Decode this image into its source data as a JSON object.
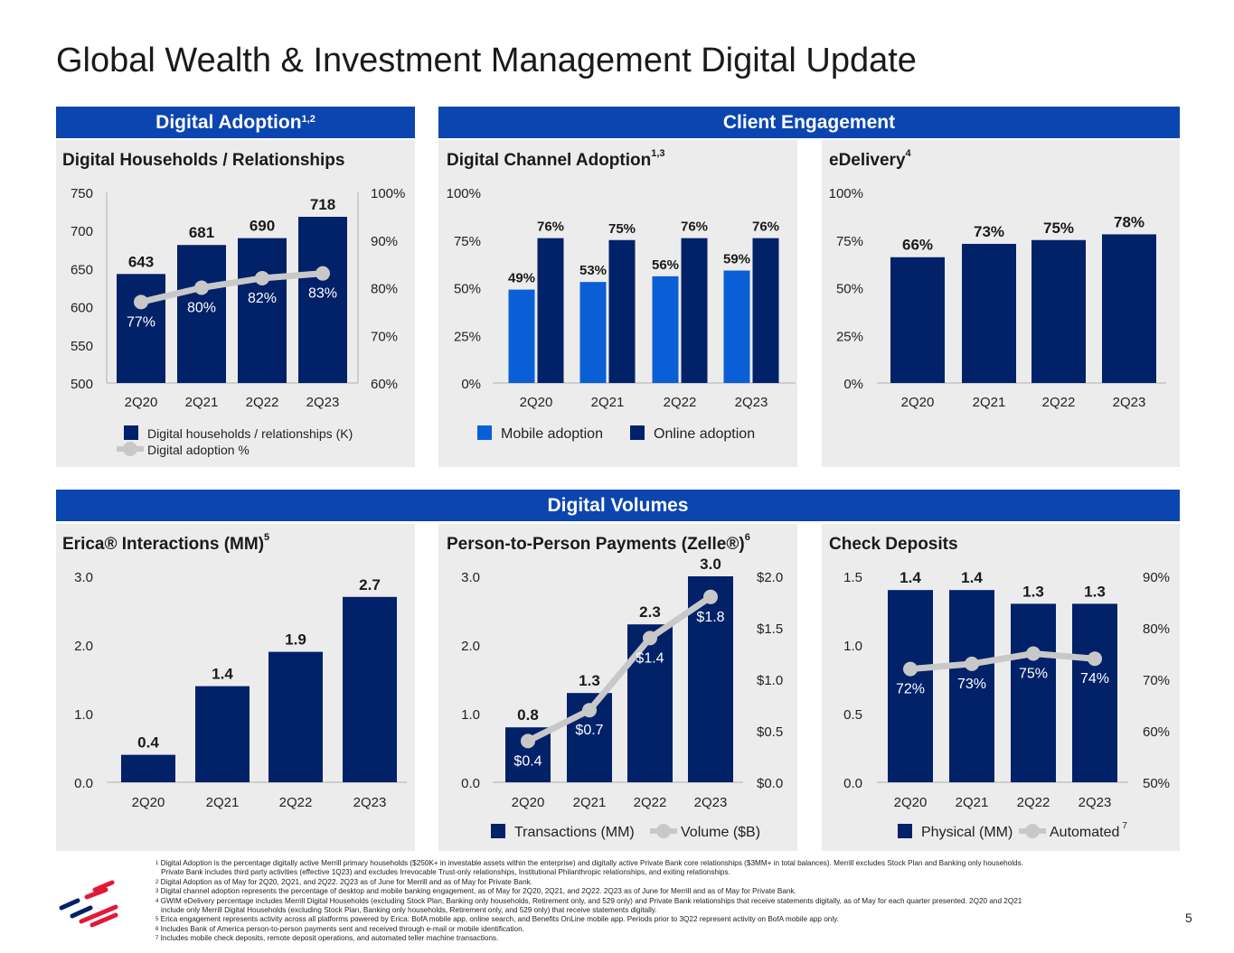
{
  "title": "Global Wealth & Investment Management Digital Update",
  "sections": {
    "digital_adoption": {
      "label": "Digital Adoption",
      "sup": "1,2"
    },
    "client_engagement": {
      "label": "Client Engagement"
    },
    "digital_volumes": {
      "label": "Digital Volumes"
    }
  },
  "colors": {
    "header": "#0b45b0",
    "navy": "#012169",
    "mobile_blue": "#0a5fd6",
    "line_gray": "#c8c8c8",
    "panel_bg": "#ececec",
    "logo_red": "#e31837"
  },
  "chart_data": [
    {
      "type": "bar+line",
      "title": "Digital Households / Relationships",
      "title_sup": "",
      "categories": [
        "2Q20",
        "2Q21",
        "2Q22",
        "2Q23"
      ],
      "ylim": [
        500,
        750
      ],
      "yticks": [
        500,
        550,
        600,
        650,
        700,
        750
      ],
      "ytick_labels": [
        "500",
        "550",
        "600",
        "650",
        "700",
        "750"
      ],
      "y2lim": [
        60,
        100
      ],
      "y2ticks": [
        60,
        70,
        80,
        90,
        100
      ],
      "y2tick_labels": [
        "60%",
        "70%",
        "80%",
        "90%",
        "100%"
      ],
      "legend": "bottom",
      "series": [
        {
          "name": "Digital households / relationships (K)",
          "type": "bar",
          "axis": "left",
          "values": [
            643,
            681,
            690,
            718
          ],
          "labels": [
            "643",
            "681",
            "690",
            "718"
          ]
        },
        {
          "name": "Digital adoption %",
          "type": "line",
          "axis": "right",
          "values": [
            77,
            80,
            82,
            83
          ],
          "labels": [
            "77%",
            "80%",
            "82%",
            "83%"
          ]
        }
      ]
    },
    {
      "type": "bar",
      "title": "Digital Channel Adoption",
      "title_sup": "1,3",
      "categories": [
        "2Q20",
        "2Q21",
        "2Q22",
        "2Q23"
      ],
      "ylim": [
        0,
        100
      ],
      "yticks": [
        0,
        25,
        50,
        75,
        100
      ],
      "ytick_labels": [
        "0%",
        "25%",
        "50%",
        "75%",
        "100%"
      ],
      "legend": "bottom",
      "series": [
        {
          "name": "Mobile adoption",
          "type": "bar",
          "axis": "left",
          "values": [
            49,
            53,
            56,
            59
          ],
          "labels": [
            "49%",
            "53%",
            "56%",
            "59%"
          ]
        },
        {
          "name": "Online adoption",
          "type": "bar",
          "axis": "left",
          "values": [
            76,
            75,
            76,
            76
          ],
          "labels": [
            "76%",
            "75%",
            "76%",
            "76%"
          ]
        }
      ]
    },
    {
      "type": "bar",
      "title": "eDelivery",
      "title_sup": "4",
      "categories": [
        "2Q20",
        "2Q21",
        "2Q22",
        "2Q23"
      ],
      "ylim": [
        0,
        100
      ],
      "yticks": [
        0,
        25,
        50,
        75,
        100
      ],
      "ytick_labels": [
        "0%",
        "25%",
        "50%",
        "75%",
        "100%"
      ],
      "series": [
        {
          "type": "bar",
          "axis": "left",
          "values": [
            66,
            73,
            75,
            78
          ],
          "labels": [
            "66%",
            "73%",
            "75%",
            "78%"
          ]
        }
      ]
    },
    {
      "type": "bar",
      "title": "Erica® Interactions (MM)",
      "title_sup": "5",
      "categories": [
        "2Q20",
        "2Q21",
        "2Q22",
        "2Q23"
      ],
      "ylim": [
        0,
        3
      ],
      "yticks": [
        0,
        1,
        2,
        3
      ],
      "ytick_labels": [
        "0.0",
        "1.0",
        "2.0",
        "3.0"
      ],
      "series": [
        {
          "type": "bar",
          "axis": "left",
          "values": [
            0.4,
            1.4,
            1.9,
            2.7
          ],
          "labels": [
            "0.4",
            "1.4",
            "1.9",
            "2.7"
          ]
        }
      ]
    },
    {
      "type": "bar+line",
      "title": "Person-to-Person Payments (Zelle®)",
      "title_sup": "6",
      "categories": [
        "2Q20",
        "2Q21",
        "2Q22",
        "2Q23"
      ],
      "ylim": [
        0,
        3
      ],
      "yticks": [
        0,
        1,
        2,
        3
      ],
      "ytick_labels": [
        "0.0",
        "1.0",
        "2.0",
        "3.0"
      ],
      "y2lim": [
        0,
        2
      ],
      "y2ticks": [
        0,
        0.5,
        1,
        1.5,
        2
      ],
      "y2tick_labels": [
        "$0.0",
        "$0.5",
        "$1.0",
        "$1.5",
        "$2.0"
      ],
      "legend": "bottom",
      "series": [
        {
          "name": "Transactions (MM)",
          "type": "bar",
          "axis": "left",
          "values": [
            0.8,
            1.3,
            2.3,
            3.0
          ],
          "labels": [
            "0.8",
            "1.3",
            "2.3",
            "3.0"
          ]
        },
        {
          "name": "Volume ($B)",
          "type": "line",
          "axis": "right",
          "values": [
            0.4,
            0.7,
            1.4,
            1.8
          ],
          "labels": [
            "$0.4",
            "$0.7",
            "$1.4",
            "$1.8"
          ]
        }
      ]
    },
    {
      "type": "bar+line",
      "title": "Check Deposits",
      "title_sup": "",
      "categories": [
        "2Q20",
        "2Q21",
        "2Q22",
        "2Q23"
      ],
      "ylim": [
        0,
        1.5
      ],
      "yticks": [
        0,
        0.5,
        1,
        1.5
      ],
      "ytick_labels": [
        "0.0",
        "0.5",
        "1.0",
        "1.5"
      ],
      "y2lim": [
        50,
        90
      ],
      "y2ticks": [
        50,
        60,
        70,
        80,
        90
      ],
      "y2tick_labels": [
        "50%",
        "60%",
        "70%",
        "80%",
        "90%"
      ],
      "legend": "bottom",
      "series": [
        {
          "name": "Physical (MM)",
          "type": "bar",
          "axis": "left",
          "values": [
            1.4,
            1.4,
            1.3,
            1.3
          ],
          "labels": [
            "1.4",
            "1.4",
            "1.3",
            "1.3"
          ]
        },
        {
          "name": "Automated",
          "name_sup": "7",
          "type": "line",
          "axis": "right",
          "values": [
            72,
            73,
            75,
            74
          ],
          "labels": [
            "72%",
            "73%",
            "75%",
            "74%"
          ]
        }
      ]
    }
  ],
  "footnotes": [
    {
      "num": "1",
      "text": "Digital Adoption is the percentage digitally active Merrill primary households ($250K+ in investable assets within the enterprise) and digitally active Private Bank core relationships ($3MM+ in total balances). Merrill excludes Stock Plan and Banking only households."
    },
    {
      "num": "",
      "text": "Private Bank includes third party activities (effective 1Q23) and excludes Irrevocable Trust-only relationships, Institutional Philanthropic relationships, and exiting relationships."
    },
    {
      "num": "2",
      "text": "Digital Adoption as of May for 2Q20, 2Q21, and 2Q22. 2Q23 as of June for Merrill and as of May for Private Bank."
    },
    {
      "num": "3",
      "text": "Digital channel adoption represents the percentage of desktop and mobile banking engagement, as of May for 2Q20, 2Q21, and 2Q22. 2Q23 as of June for Merrill and as of May for Private Bank."
    },
    {
      "num": "4",
      "text": "GWIM eDelivery percentage includes Merrill Digital Households (excluding Stock Plan, Banking only households, Retirement only, and 529 only) and Private Bank relationships that receive statements digitally, as of May for each quarter presented. 2Q20 and 2Q21"
    },
    {
      "num": "",
      "text": "include only Merrill Digital Households (excluding Stock Plan, Banking only households, Retirement only, and 529 only) that receive statements digitally."
    },
    {
      "num": "5",
      "text": "Erica engagement represents activity across all platforms powered by Erica: BofA mobile app, online search, and Benefits OnLine mobile app. Periods prior to 3Q22 represent activity on BofA mobile app only."
    },
    {
      "num": "6",
      "text": "Includes Bank of America person-to-person payments sent and received through e-mail or mobile identification."
    },
    {
      "num": "7",
      "text": "Includes mobile check deposits, remote deposit operations, and automated teller machine transactions."
    }
  ],
  "page_number": "5"
}
